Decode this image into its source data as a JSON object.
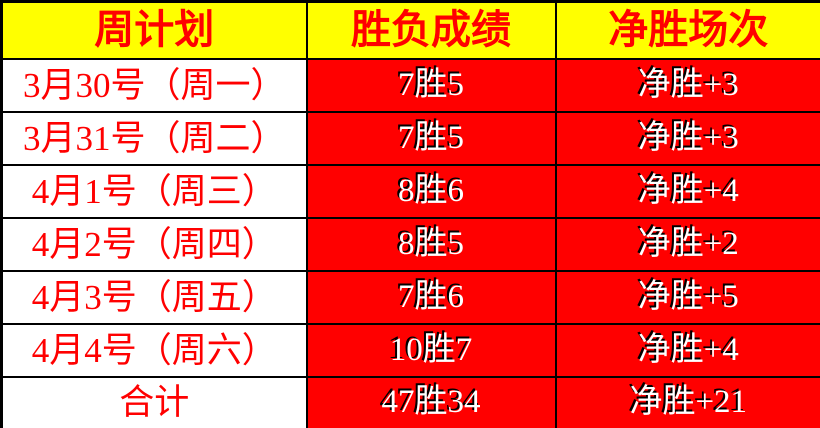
{
  "table": {
    "title_semantic": "weekly-win-loss-record",
    "headers": {
      "plan": "周计划",
      "record": "胜负成绩",
      "net": "净胜场次"
    },
    "rows": [
      {
        "plan": "3月30号（周一）",
        "record": "7胜5",
        "net": "净胜+3"
      },
      {
        "plan": "3月31号（周二）",
        "record": "7胜5",
        "net": "净胜+3"
      },
      {
        "plan": "4月1号（周三）",
        "record": "8胜6",
        "net": "净胜+4"
      },
      {
        "plan": "4月2号（周四）",
        "record": "8胜5",
        "net": "净胜+2"
      },
      {
        "plan": "4月3号（周五）",
        "record": "7胜6",
        "net": "净胜+5"
      },
      {
        "plan": "4月4号（周六）",
        "record": "10胜7",
        "net": "净胜+4"
      },
      {
        "plan": "合计",
        "record": "47胜34",
        "net": "净胜+21"
      }
    ],
    "colors": {
      "header_bg": "#ffff00",
      "header_text": "#ff0000",
      "plan_bg": "#ffffff",
      "plan_text": "#ff0000",
      "value_bg": "#ff0000",
      "value_text": "#ffffff",
      "value_emboss_shadow": "#000000",
      "border": "#000000"
    }
  }
}
